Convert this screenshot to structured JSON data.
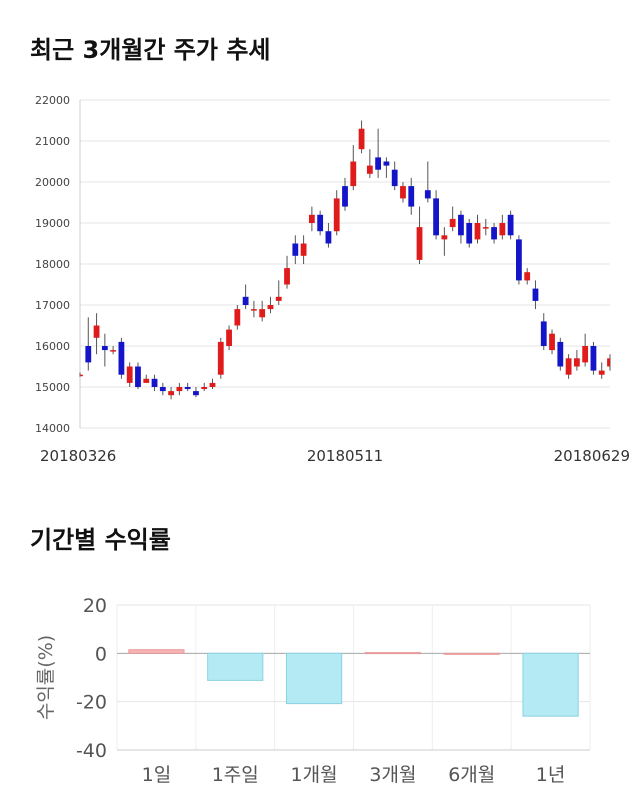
{
  "sections": {
    "price_title": "최근 3개월간 주가 추세",
    "return_title": "기간별 수익률"
  },
  "chart_data": [
    {
      "type": "candlestick",
      "yticks": [
        14000,
        15000,
        16000,
        17000,
        18000,
        19000,
        20000,
        21000,
        22000
      ],
      "ylim": [
        14000,
        22000
      ],
      "grid": true,
      "x_tick_labels": [
        {
          "index": 0,
          "label": "20180326"
        },
        {
          "index": 32,
          "label": "20180511"
        },
        {
          "index": 64,
          "label": "20180629"
        }
      ],
      "colors": {
        "up": "#e01b1b",
        "down": "#1414c8",
        "wick": "#555555"
      },
      "candles": [
        [
          15300,
          15300,
          15250,
          15350
        ],
        [
          16000,
          15600,
          16700,
          15400
        ],
        [
          16200,
          16500,
          16800,
          15800
        ],
        [
          16000,
          15900,
          16300,
          15500
        ],
        [
          15900,
          15900,
          16000,
          15800
        ],
        [
          16100,
          15300,
          16200,
          15200
        ],
        [
          15100,
          15500,
          15600,
          15000
        ],
        [
          15500,
          15000,
          15600,
          14950
        ],
        [
          15100,
          15200,
          15300,
          15100
        ],
        [
          15200,
          15000,
          15300,
          14900
        ],
        [
          15000,
          14900,
          15100,
          14800
        ],
        [
          14800,
          14900,
          15000,
          14700
        ],
        [
          14900,
          15000,
          15100,
          14800
        ],
        [
          15000,
          14950,
          15100,
          14900
        ],
        [
          14900,
          14800,
          15000,
          14750
        ],
        [
          14950,
          15000,
          15100,
          14900
        ],
        [
          15000,
          15100,
          15200,
          14950
        ],
        [
          15300,
          16100,
          16200,
          15200
        ],
        [
          16000,
          16400,
          16500,
          15900
        ],
        [
          16500,
          16900,
          17000,
          16400
        ],
        [
          17200,
          17000,
          17500,
          16900
        ],
        [
          16900,
          16900,
          17100,
          16700
        ],
        [
          16700,
          16900,
          17100,
          16600
        ],
        [
          16900,
          17000,
          17200,
          16800
        ],
        [
          17100,
          17200,
          17600,
          17000
        ],
        [
          17500,
          17900,
          18200,
          17400
        ],
        [
          18500,
          18200,
          18700,
          18000
        ],
        [
          18200,
          18500,
          18700,
          18000
        ],
        [
          19000,
          19200,
          19400,
          18800
        ],
        [
          19200,
          18800,
          19300,
          18700
        ],
        [
          18800,
          18500,
          19000,
          18400
        ],
        [
          18800,
          19600,
          19800,
          18700
        ],
        [
          19900,
          19400,
          20100,
          19300
        ],
        [
          19900,
          20500,
          20900,
          19800
        ],
        [
          20800,
          21300,
          21500,
          20700
        ],
        [
          20200,
          20400,
          20800,
          20100
        ],
        [
          20600,
          20300,
          21300,
          20100
        ],
        [
          20500,
          20400,
          20600,
          20100
        ],
        [
          20300,
          19900,
          20500,
          19800
        ],
        [
          19600,
          19900,
          20000,
          19500
        ],
        [
          19900,
          19400,
          20100,
          19200
        ],
        [
          18100,
          18900,
          19400,
          18000
        ],
        [
          19800,
          19600,
          20500,
          19500
        ],
        [
          19600,
          18700,
          19800,
          18600
        ],
        [
          18600,
          18700,
          18900,
          18200
        ],
        [
          18900,
          19100,
          19400,
          18800
        ],
        [
          19200,
          18700,
          19300,
          18500
        ],
        [
          19000,
          18500,
          19100,
          18400
        ],
        [
          18600,
          19000,
          19200,
          18500
        ],
        [
          18900,
          18900,
          19100,
          18700
        ],
        [
          18900,
          18600,
          19000,
          18500
        ],
        [
          18700,
          19000,
          19200,
          18600
        ],
        [
          19200,
          18700,
          19300,
          18600
        ],
        [
          18600,
          17600,
          18700,
          17500
        ],
        [
          17600,
          17800,
          17900,
          17500
        ],
        [
          17400,
          17100,
          17600,
          16900
        ],
        [
          16600,
          16000,
          16800,
          15900
        ],
        [
          15900,
          16300,
          16400,
          15800
        ],
        [
          16100,
          15500,
          16200,
          15400
        ],
        [
          15300,
          15700,
          15800,
          15200
        ],
        [
          15500,
          15700,
          15900,
          15400
        ],
        [
          15600,
          16000,
          16300,
          15500
        ],
        [
          16000,
          15400,
          16100,
          15300
        ],
        [
          15300,
          15400,
          15600,
          15200
        ],
        [
          15500,
          15700,
          15800,
          15400
        ]
      ]
    },
    {
      "type": "bar",
      "categories": [
        "1일",
        "1주일",
        "1개월",
        "3개월",
        "6개월",
        "1년"
      ],
      "values": [
        1.5,
        -11.2,
        -20.8,
        0.3,
        0,
        -26.0
      ],
      "ylabel": "수익률(%)",
      "yticks": [
        20,
        0,
        -20,
        -40
      ],
      "ylim": [
        -40,
        20
      ],
      "grid": true,
      "colors": {
        "positive_fill": "#f7b4b4",
        "positive_edge": "#e89a9a",
        "negative_fill": "#b4eaf4",
        "negative_edge": "#8ad2e2"
      }
    }
  ]
}
